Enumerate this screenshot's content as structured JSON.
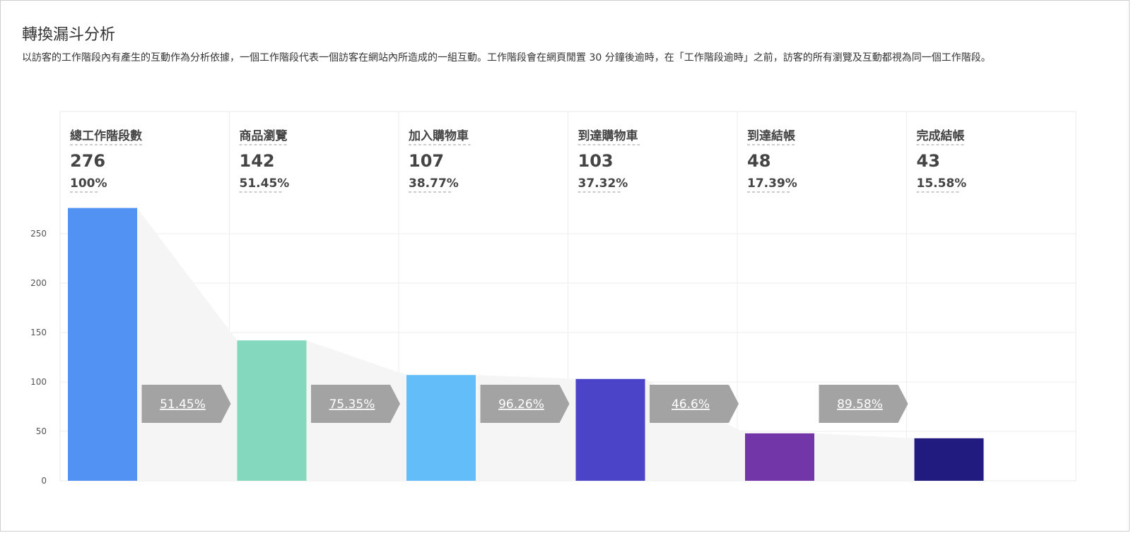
{
  "page": {
    "title": "轉換漏斗分析",
    "description": "以訪客的工作階段內有產生的互動作為分析依據，一個工作階段代表一個訪客在網站內所造成的一組互動。工作階段會在網頁閒置 30 分鐘後逾時，在「工作階段逾時」之前，訪客的所有瀏覽及互動都視為同一個工作階段。"
  },
  "chart_data": {
    "type": "bar",
    "categories": [
      "總工作階段數",
      "商品瀏覽",
      "加入購物車",
      "到達購物車",
      "到達結帳",
      "完成結帳"
    ],
    "values": [
      276,
      142,
      107,
      103,
      48,
      43
    ],
    "percent_of_total": [
      "100%",
      "51.45%",
      "38.77%",
      "37.32%",
      "17.39%",
      "15.58%"
    ],
    "step_conversion": [
      "51.45%",
      "75.35%",
      "96.26%",
      "46.6%",
      "89.58%"
    ],
    "colors": [
      "#5192f2",
      "#84d8be",
      "#63bdf8",
      "#4c44c8",
      "#7236a8",
      "#211b7f"
    ],
    "ylim": [
      0,
      300
    ],
    "yticks": [
      0,
      50,
      100,
      150,
      200,
      250
    ],
    "grid": true
  }
}
